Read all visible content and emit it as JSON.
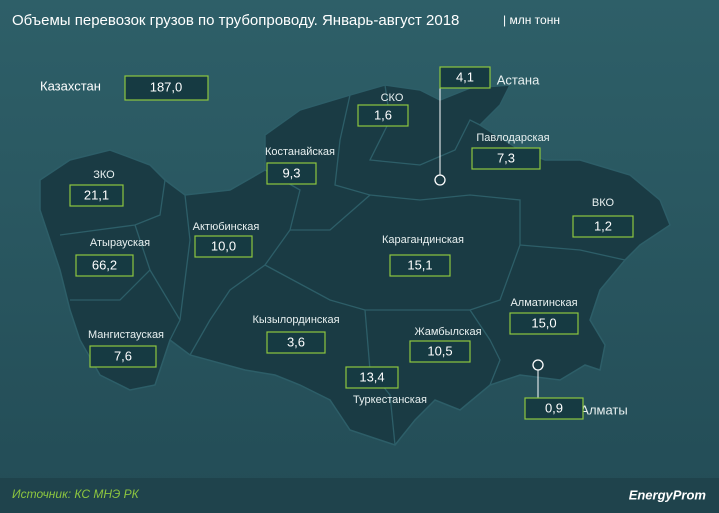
{
  "header": {
    "title": "Объемы перевозок грузов по трубопроводу. Январь-август 2018",
    "unit": "| млн тонн"
  },
  "total": {
    "name": "Казахстан",
    "value": "187,0"
  },
  "regions": [
    {
      "name": "СКО",
      "value": "1,6"
    },
    {
      "name": "Астана",
      "value": "4,1"
    },
    {
      "name": "Павлодарская",
      "value": "7,3"
    },
    {
      "name": "Костанайская",
      "value": "9,3"
    },
    {
      "name": "ЗКО",
      "value": "21,1"
    },
    {
      "name": "ВКО",
      "value": "1,2"
    },
    {
      "name": "Актюбинская",
      "value": "10,0"
    },
    {
      "name": "Атырауская",
      "value": "66,2"
    },
    {
      "name": "Карагандинская",
      "value": "15,1"
    },
    {
      "name": "Кызылординская",
      "value": "3,6"
    },
    {
      "name": "Алматинская",
      "value": "15,0"
    },
    {
      "name": "Жамбылская",
      "value": "10,5"
    },
    {
      "name": "Мангистауская",
      "value": "7,6"
    },
    {
      "name": "Туркестанская",
      "value": "13,4"
    },
    {
      "name": "Алматы",
      "value": "0,9"
    }
  ],
  "footer": {
    "source": "Источник: КС МНЭ РК",
    "logo": "EnergyProm"
  }
}
